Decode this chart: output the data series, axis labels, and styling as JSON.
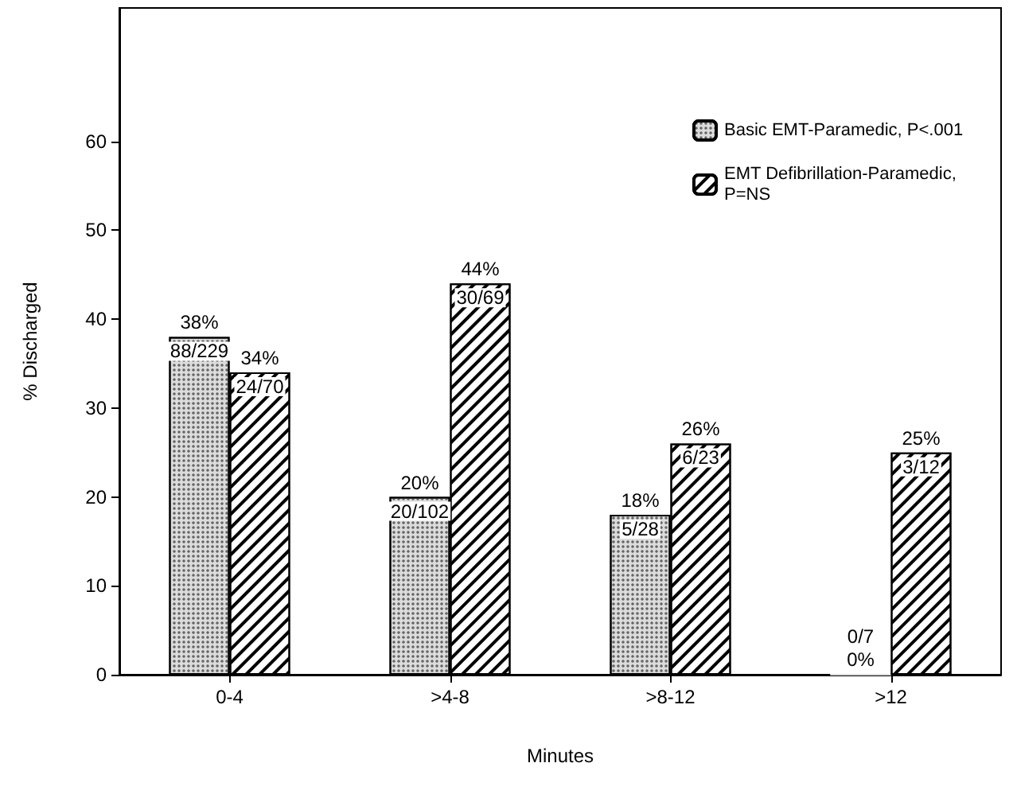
{
  "chart_data": {
    "type": "bar",
    "xlabel": "Minutes",
    "ylabel": "% Discharged",
    "categories": [
      "0-4",
      ">4-8",
      ">8-12",
      ">12"
    ],
    "series": [
      {
        "name": "Basic EMT-Paramedic, P<.001",
        "color": "#dcdcdc",
        "values": [
          38,
          20,
          18,
          0
        ],
        "value_labels": [
          "38%",
          "20%",
          "18%",
          "0%"
        ]
      },
      {
        "name": "EMT Defibrillation-Paramedic, P=NS",
        "color": "#ffffff",
        "values": [
          34,
          44,
          26,
          25
        ],
        "value_labels": [
          "34%",
          "44%",
          "26%",
          "25%"
        ]
      }
    ],
    "annotations": [
      {
        "text": "88/229",
        "x": "0-4",
        "y": 38
      },
      {
        "text": "24/70",
        "x": "0-4",
        "y": 34
      },
      {
        "text": "20/102",
        "x": ">4-8",
        "y": 20
      },
      {
        "text": "30/69",
        "x": ">4-8",
        "y": 44
      },
      {
        "text": "5/28",
        "x": ">8-12",
        "y": 18
      },
      {
        "text": "6/23",
        "x": ">8-12",
        "y": 26
      },
      {
        "text": "0/7",
        "x": ">12",
        "y": 0
      },
      {
        "text": "3/12",
        "x": ">12",
        "y": 25
      }
    ],
    "ylim": [
      0,
      75
    ],
    "yticks": [
      0,
      10,
      20,
      30,
      40,
      50,
      60
    ],
    "legend": "top right"
  }
}
